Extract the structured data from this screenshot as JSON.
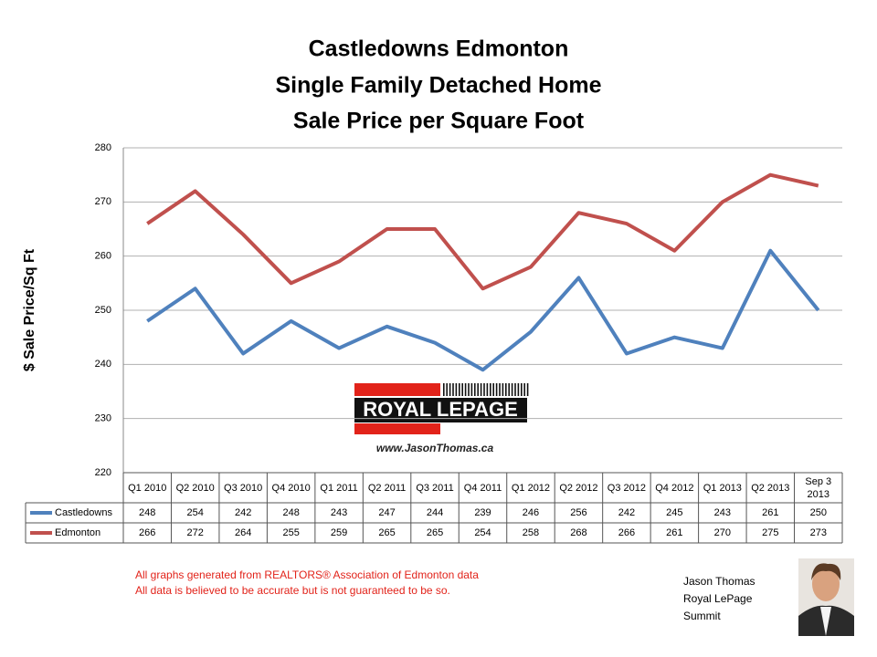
{
  "chart_data": {
    "type": "line",
    "title": [
      "Castledowns Edmonton",
      "Single Family Detached Home",
      "Sale Price per Square Foot"
    ],
    "y_label": "$ Sale Price/Sq Ft",
    "categories": [
      "Q1 2010",
      "Q2 2010",
      "Q3 2010",
      "Q4 2010",
      "Q1 2011",
      "Q2 2011",
      "Q3 2011",
      "Q4 2011",
      "Q1 2012",
      "Q2 2012",
      "Q3 2012",
      "Q4 2012",
      "Q1 2013",
      "Q2 2013",
      "Sep 3 2013"
    ],
    "series": [
      {
        "name": "Castledowns",
        "color": "#4f81bd",
        "values": [
          248,
          254,
          242,
          248,
          243,
          247,
          244,
          239,
          246,
          256,
          242,
          245,
          243,
          261,
          250
        ]
      },
      {
        "name": "Edmonton",
        "color": "#c0504d",
        "values": [
          266,
          272,
          264,
          255,
          259,
          265,
          265,
          254,
          258,
          268,
          266,
          261,
          270,
          275,
          273
        ]
      }
    ],
    "ylim": [
      220,
      280
    ],
    "yticks": [
      220,
      230,
      240,
      250,
      260,
      270,
      280
    ],
    "grid": true
  },
  "logo": {
    "brand": "ROYAL LEPAGE",
    "url": "www.JasonThomas.ca"
  },
  "notes": [
    "All graphs generated from REALTORS® Association of Edmonton data",
    "All data is believed to be accurate but is not guaranteed to be so."
  ],
  "author": [
    "Jason Thomas",
    "Royal LePage",
    "Summit"
  ]
}
